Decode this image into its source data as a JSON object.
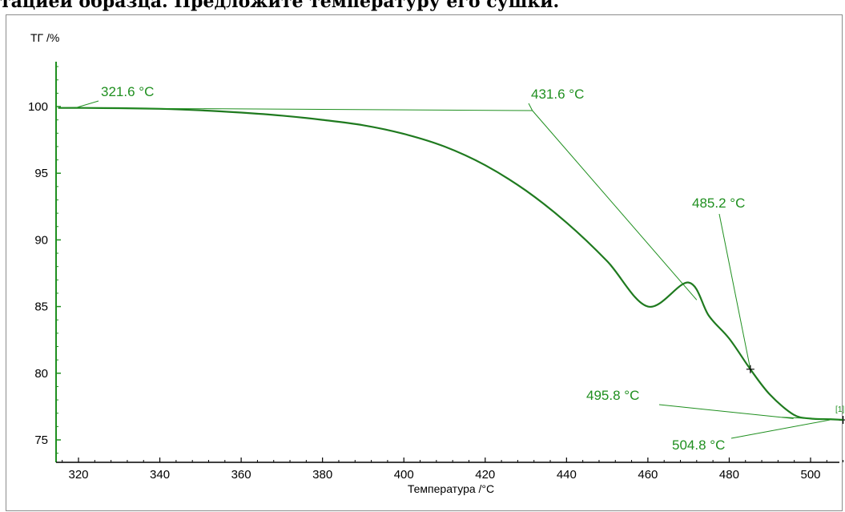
{
  "heading": "тацией образца. Предложите температуру его сушки.",
  "colors": {
    "curve": "#1f7a1f",
    "annotation": "#1f8f1f",
    "axis_green": "#1f8f1f",
    "axis_black": "#000000"
  },
  "chart_data": {
    "type": "line",
    "title": "",
    "xlabel": "Температура /°C",
    "ylabel": "ТГ /%",
    "xlim": [
      314,
      512
    ],
    "ylim": [
      73.5,
      103.5
    ],
    "x_ticks": [
      320,
      340,
      360,
      380,
      400,
      420,
      440,
      460,
      480,
      500
    ],
    "y_ticks": [
      75,
      80,
      85,
      90,
      95,
      100
    ],
    "grid": false,
    "series": [
      {
        "name": "[1]",
        "x": [
          315,
          321.6,
          330,
          340,
          350,
          360,
          370,
          380,
          390,
          400,
          410,
          420,
          430,
          440,
          450,
          460,
          470,
          475,
          480,
          485.2,
          490,
          495.8,
          500,
          504.8,
          508
        ],
        "y": [
          99.9,
          99.9,
          99.88,
          99.83,
          99.72,
          99.55,
          99.32,
          99.0,
          98.6,
          97.95,
          97.0,
          95.6,
          93.7,
          91.3,
          88.4,
          85.0,
          86.8,
          84.3,
          82.6,
          80.3,
          78.4,
          76.9,
          76.6,
          76.55,
          76.5
        ]
      }
    ],
    "annotations": [
      {
        "label": "321.6 °C",
        "x": 321.6,
        "y": 99.9
      },
      {
        "label": "431.6 °C",
        "x": 431.6,
        "y": 99.7
      },
      {
        "label": "485.2 °C",
        "x": 485.2,
        "y": 80.3
      },
      {
        "label": "495.8 °C",
        "x": 495.8,
        "y": 76.6
      },
      {
        "label": "504.8 °C",
        "x": 504.8,
        "y": 76.5
      }
    ]
  }
}
